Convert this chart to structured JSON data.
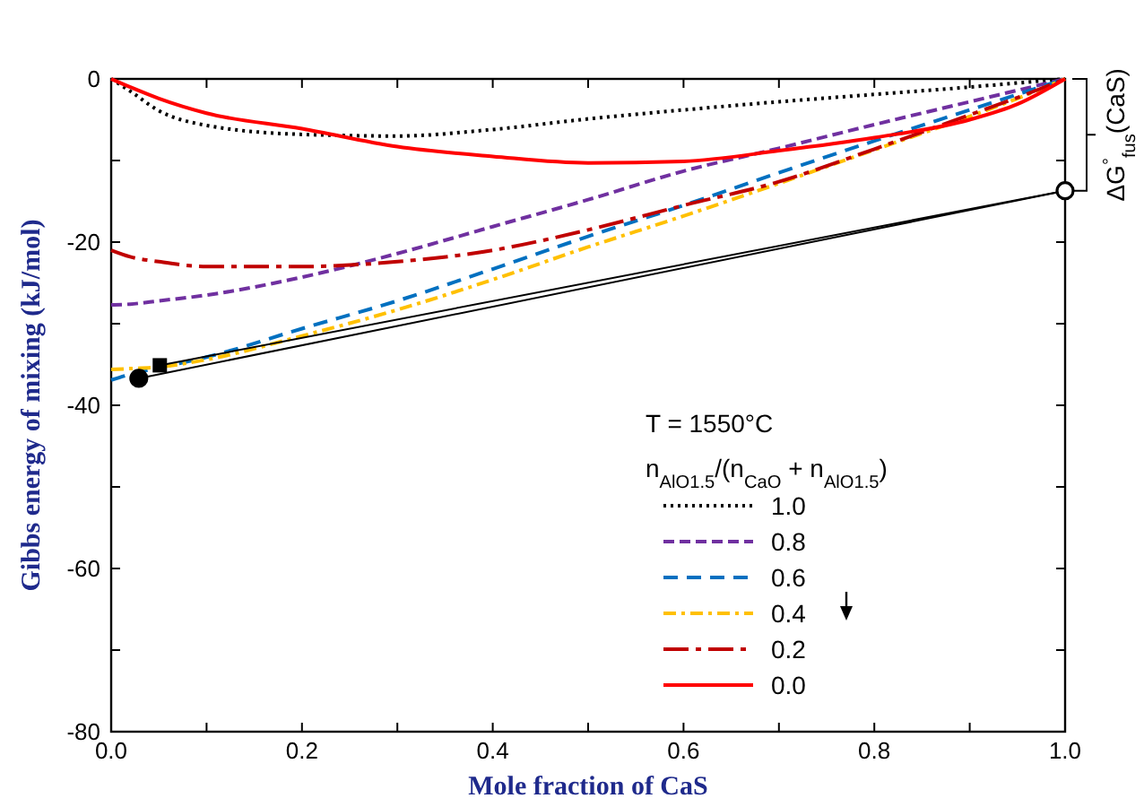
{
  "chart_data": {
    "type": "line",
    "xlabel": "Mole fraction of CaS",
    "ylabel": "Gibbs energy of mixing (kJ/mol)",
    "legend_title": "n$_{AlO1.5}$/(n$_{CaO}$ + n$_{AlO1.5}$)",
    "annotations": [
      "T = 1550°C",
      "ΔG$^{°}$$_{fus}$(CaS)"
    ],
    "x": [
      0,
      0.02,
      0.05,
      0.1,
      0.2,
      0.3,
      0.4,
      0.5,
      0.6,
      0.7,
      0.8,
      0.9,
      0.95,
      1
    ],
    "series": [
      {
        "name": "1.0",
        "color": "#000000",
        "line_style": "dotted",
        "values": [
          0,
          -1.5,
          -3.9,
          -5.7,
          -6.8,
          -7.0,
          -6.2,
          -4.9,
          -3.8,
          -2.8,
          -1.9,
          -1.0,
          -0.5,
          0
        ]
      },
      {
        "name": "0.8",
        "color": "#7030a0",
        "line_style": "dashed",
        "values": [
          -27.7,
          -27.6,
          -27.2,
          -26.5,
          -24.3,
          -21.4,
          -18.1,
          -14.8,
          -11.3,
          -8.5,
          -5.6,
          -2.8,
          -1.4,
          0
        ]
      },
      {
        "name": "0.6",
        "color": "#0070c0",
        "line_style": "longdash",
        "values": [
          -36.9,
          -36.2,
          -35.4,
          -34.1,
          -30.6,
          -27.2,
          -23.3,
          -19.3,
          -15.5,
          -11.5,
          -7.6,
          -3.8,
          -1.9,
          0
        ]
      },
      {
        "name": "0.4",
        "color": "#ffc000",
        "line_style": "dashdot",
        "values": [
          -35.6,
          -35.5,
          -35.3,
          -34.4,
          -31.5,
          -28.3,
          -24.6,
          -20.6,
          -16.8,
          -12.8,
          -8.7,
          -4.6,
          -2.4,
          0
        ]
      },
      {
        "name": "0.2",
        "color": "#c00000",
        "line_style": "longdashdot",
        "values": [
          -21.0,
          -21.8,
          -22.4,
          -23.0,
          -23.0,
          -22.4,
          -21.0,
          -18.5,
          -15.5,
          -12.6,
          -8.6,
          -4.4,
          -2.3,
          0
        ]
      },
      {
        "name": "0.0",
        "color": "#ff0000",
        "line_style": "solid",
        "values": [
          0,
          -1.0,
          -2.4,
          -4.2,
          -6.1,
          -8.3,
          -9.5,
          -10.3,
          -10.1,
          -8.8,
          -7.2,
          -5.0,
          -3.1,
          0
        ]
      },
      {
        "type": "line",
        "color": "#000000",
        "line_style": "solid",
        "x": [
          0.029,
          1
        ],
        "values": [
          -36.7,
          -13.7
        ]
      },
      {
        "type": "line",
        "color": "#000000",
        "line_style": "solid",
        "x": [
          0.051,
          1
        ],
        "values": [
          -35.1,
          -13.7
        ]
      },
      {
        "type": "scatter",
        "color": "#000000",
        "marker": "circle",
        "x": [
          0.029
        ],
        "values": [
          -36.7
        ]
      },
      {
        "type": "scatter",
        "color": "#000000",
        "marker": "square",
        "x": [
          0.051
        ],
        "values": [
          -35.1
        ]
      },
      {
        "type": "scatter",
        "color": "#ffffff",
        "marker": "circle",
        "x": [
          1
        ],
        "values": [
          -13.7
        ]
      }
    ],
    "xlim": [
      0,
      1
    ],
    "xticks": [
      {
        "value": 0,
        "label": "0.0"
      },
      {
        "value": 0.1,
        "label": null
      },
      {
        "value": 0.2,
        "label": "0.2"
      },
      {
        "value": 0.3,
        "label": null
      },
      {
        "value": 0.4,
        "label": "0.4"
      },
      {
        "value": 0.5,
        "label": null
      },
      {
        "value": 0.6,
        "label": "0.6"
      },
      {
        "value": 0.7,
        "label": null
      },
      {
        "value": 0.8,
        "label": "0.8"
      },
      {
        "value": 0.9,
        "label": null
      },
      {
        "value": 1,
        "label": "1.0"
      }
    ],
    "ylim": [
      -80,
      0
    ],
    "yticks": [
      -80,
      {
        "value": -70,
        "label": null
      },
      -60,
      {
        "value": -50,
        "label": null
      },
      -40,
      {
        "value": -30,
        "label": null
      },
      -20,
      {
        "value": -10,
        "label": null
      },
      0
    ],
    "grid": false,
    "legend": "bottom right"
  }
}
